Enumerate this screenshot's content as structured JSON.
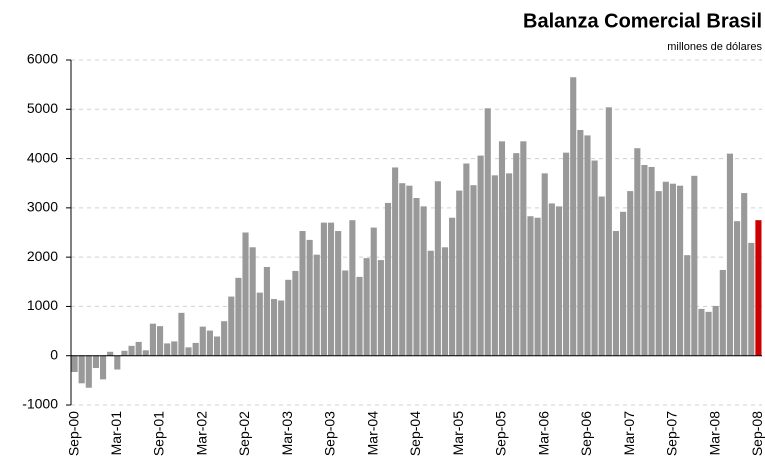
{
  "chart_data": {
    "type": "bar",
    "title": "Balanza Comercial Brasil",
    "subtitle": "millones de dólares",
    "categories": [
      "Sep-00",
      null,
      null,
      null,
      null,
      null,
      "Mar-01",
      null,
      null,
      null,
      null,
      null,
      "Sep-01",
      null,
      null,
      null,
      null,
      null,
      "Mar-02",
      null,
      null,
      null,
      null,
      null,
      "Sep-02",
      null,
      null,
      null,
      null,
      null,
      "Mar-03",
      null,
      null,
      null,
      null,
      null,
      "Sep-03",
      null,
      null,
      null,
      null,
      null,
      "Mar-04",
      null,
      null,
      null,
      null,
      null,
      "Sep-04",
      null,
      null,
      null,
      null,
      null,
      "Mar-05",
      null,
      null,
      null,
      null,
      null,
      "Sep-05",
      null,
      null,
      null,
      null,
      null,
      "Mar-06",
      null,
      null,
      null,
      null,
      null,
      "Sep-06",
      null,
      null,
      null,
      null,
      null,
      "Mar-07",
      null,
      null,
      null,
      null,
      null,
      "Sep-07",
      null,
      null,
      null,
      null,
      null,
      "Mar-08",
      null,
      null,
      null,
      null,
      null,
      "Sep-08"
    ],
    "values": [
      -330,
      -560,
      -650,
      -250,
      -480,
      80,
      -280,
      100,
      200,
      280,
      110,
      650,
      600,
      250,
      290,
      870,
      170,
      260,
      590,
      510,
      390,
      700,
      1200,
      1580,
      2500,
      2200,
      1280,
      1800,
      1150,
      1120,
      1540,
      1720,
      2530,
      2350,
      2050,
      2700,
      2700,
      2530,
      1730,
      2750,
      1600,
      1980,
      2600,
      1940,
      3100,
      3820,
      3500,
      3450,
      3200,
      3030,
      2130,
      3540,
      2200,
      2800,
      3350,
      3900,
      3460,
      4060,
      5020,
      3660,
      4350,
      3700,
      4110,
      4350,
      2830,
      2800,
      3700,
      3090,
      3030,
      4120,
      5650,
      4580,
      4470,
      3960,
      3230,
      5040,
      2530,
      2920,
      3340,
      4210,
      3870,
      3830,
      3340,
      3530,
      3490,
      3450,
      2040,
      3650,
      950,
      890,
      1010,
      1740,
      4100,
      2730,
      3300,
      2290,
      2750
    ],
    "color": "#999999",
    "last_bar_color": "#cc0000",
    "ylim": [
      -1000,
      6000
    ],
    "yticks": [
      -1000,
      0,
      1000,
      2000,
      3000,
      4000,
      5000,
      6000
    ],
    "grid": true
  }
}
